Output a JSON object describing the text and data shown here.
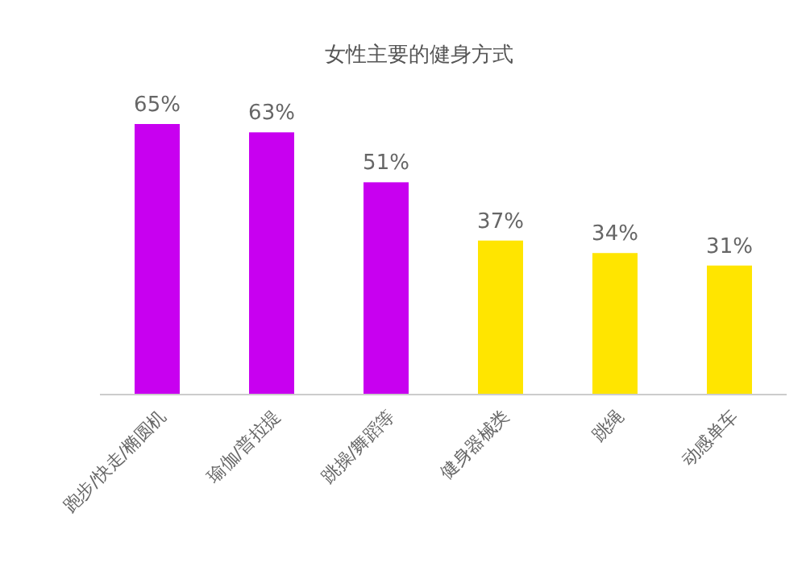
{
  "chart_data": {
    "type": "bar",
    "title": "女性主要的健身方式",
    "categories": [
      "跑步/快走/椭圆机",
      "瑜伽/普拉提",
      "跳操/舞蹈等",
      "健身器械类",
      "跳绳",
      "动感单车"
    ],
    "values": [
      65,
      63,
      51,
      37,
      34,
      31
    ],
    "value_labels": [
      "65%",
      "63%",
      "51%",
      "37%",
      "34%",
      "31%"
    ],
    "colors": [
      "#c800f0",
      "#c800f0",
      "#c800f0",
      "#ffe500",
      "#ffe500",
      "#ffe500"
    ]
  }
}
